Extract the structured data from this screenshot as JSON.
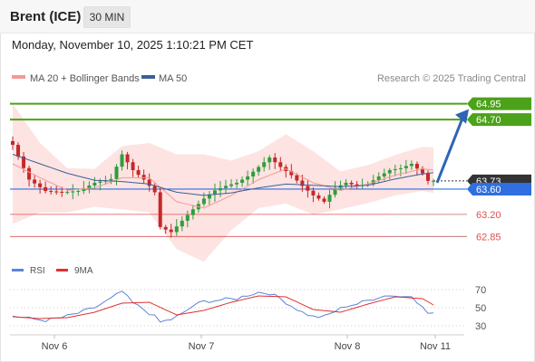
{
  "header": {
    "instrument": "Brent (ICE)",
    "timeframe": "30 MIN"
  },
  "datetime": "Monday, November 10, 2025 1:10:21 PM CET",
  "copyright": "Research © 2025 Trading Central",
  "colors": {
    "ma20_bb": "#f39a96",
    "ma50": "#3a5f9a",
    "resistance": "#4ca21a",
    "support": "#e05050",
    "current": "#2f6fe0",
    "pivot": "#333333",
    "rsi": "#5b84d8",
    "rsi_ma": "#e03030",
    "candle_up": "#2e9e3a",
    "candle_down": "#c62828",
    "arrow": "#2f64b3",
    "band_fill": "#fde0df"
  },
  "chart_data": {
    "type": "candlestick",
    "legend": [
      {
        "name": "MA 20 + Bollinger Bands",
        "color": "#f39a96"
      },
      {
        "name": "MA 50",
        "color": "#3a5f9a"
      }
    ],
    "ylim": [
      62.64,
      65.16
    ],
    "x_labels": [
      "Nov 6",
      "Nov 7",
      "Nov 8",
      "Nov 11"
    ],
    "levels": [
      {
        "value": 64.95,
        "label": "64.95",
        "type": "resistance"
      },
      {
        "value": 64.7,
        "label": "64.70",
        "type": "resistance"
      },
      {
        "value": 63.73,
        "label": "63.73",
        "type": "pivot"
      },
      {
        "value": 63.6,
        "label": "63.60",
        "type": "current"
      },
      {
        "value": 63.2,
        "label": "63.20",
        "type": "support"
      },
      {
        "value": 62.85,
        "label": "62.85",
        "type": "support"
      }
    ],
    "forecast_arrow": {
      "from": 63.7,
      "to": 64.95
    },
    "price_path": [
      [
        0,
        64.3
      ],
      [
        3,
        63.75
      ],
      [
        6,
        63.57
      ],
      [
        9,
        63.55
      ],
      [
        12,
        63.57
      ],
      [
        15,
        63.7
      ],
      [
        18,
        63.76
      ],
      [
        20,
        64.15
      ],
      [
        22,
        63.9
      ],
      [
        24,
        63.75
      ],
      [
        26,
        63.55
      ],
      [
        27,
        63.0
      ],
      [
        29,
        62.92
      ],
      [
        31,
        63.1
      ],
      [
        33,
        63.28
      ],
      [
        35,
        63.45
      ],
      [
        37,
        63.58
      ],
      [
        39,
        63.65
      ],
      [
        41,
        63.7
      ],
      [
        43,
        63.8
      ],
      [
        45,
        63.95
      ],
      [
        47,
        64.1
      ],
      [
        49,
        63.95
      ],
      [
        51,
        63.82
      ],
      [
        53,
        63.65
      ],
      [
        55,
        63.5
      ],
      [
        57,
        63.4
      ],
      [
        59,
        63.62
      ],
      [
        61,
        63.7
      ],
      [
        63,
        63.65
      ],
      [
        65,
        63.68
      ],
      [
        67,
        63.8
      ],
      [
        69,
        63.9
      ],
      [
        71,
        63.93
      ],
      [
        73,
        64.0
      ],
      [
        75,
        63.85
      ],
      [
        76,
        63.73
      ],
      [
        77,
        63.73
      ]
    ],
    "ma20_path": [
      [
        0,
        64.0
      ],
      [
        5,
        63.78
      ],
      [
        10,
        63.58
      ],
      [
        15,
        63.62
      ],
      [
        20,
        63.78
      ],
      [
        25,
        63.78
      ],
      [
        30,
        63.4
      ],
      [
        35,
        63.3
      ],
      [
        40,
        63.5
      ],
      [
        45,
        63.75
      ],
      [
        50,
        63.92
      ],
      [
        55,
        63.7
      ],
      [
        60,
        63.58
      ],
      [
        65,
        63.68
      ],
      [
        70,
        63.82
      ],
      [
        75,
        63.92
      ],
      [
        77,
        63.9
      ]
    ],
    "ma50_path": [
      [
        0,
        64.15
      ],
      [
        5,
        64.0
      ],
      [
        10,
        63.85
      ],
      [
        15,
        63.74
      ],
      [
        20,
        63.72
      ],
      [
        25,
        63.68
      ],
      [
        30,
        63.55
      ],
      [
        35,
        63.5
      ],
      [
        40,
        63.54
      ],
      [
        45,
        63.62
      ],
      [
        50,
        63.68
      ],
      [
        55,
        63.66
      ],
      [
        60,
        63.64
      ],
      [
        65,
        63.66
      ],
      [
        70,
        63.76
      ],
      [
        75,
        63.84
      ],
      [
        77,
        63.86
      ]
    ],
    "bb_width": [
      [
        0,
        0.95
      ],
      [
        5,
        0.55
      ],
      [
        10,
        0.35
      ],
      [
        15,
        0.3
      ],
      [
        20,
        0.5
      ],
      [
        25,
        0.55
      ],
      [
        30,
        0.75
      ],
      [
        35,
        0.85
      ],
      [
        40,
        0.55
      ],
      [
        45,
        0.45
      ],
      [
        50,
        0.55
      ],
      [
        55,
        0.5
      ],
      [
        60,
        0.3
      ],
      [
        65,
        0.3
      ],
      [
        70,
        0.32
      ],
      [
        75,
        0.35
      ],
      [
        77,
        0.36
      ]
    ],
    "rsi": {
      "legend": [
        {
          "name": "RSI",
          "color": "#5b84d8"
        },
        {
          "name": "9MA",
          "color": "#e03030"
        }
      ],
      "ylim": [
        22,
        78
      ],
      "ticks": [
        70,
        50,
        30
      ],
      "rsi_path": [
        [
          0,
          41
        ],
        [
          3,
          38
        ],
        [
          6,
          36
        ],
        [
          9,
          39
        ],
        [
          12,
          44
        ],
        [
          15,
          50
        ],
        [
          18,
          60
        ],
        [
          20,
          68
        ],
        [
          22,
          55
        ],
        [
          24,
          48
        ],
        [
          26,
          40
        ],
        [
          27,
          34
        ],
        [
          29,
          37
        ],
        [
          31,
          43
        ],
        [
          33,
          52
        ],
        [
          35,
          57
        ],
        [
          37,
          58
        ],
        [
          39,
          59
        ],
        [
          41,
          60
        ],
        [
          43,
          64
        ],
        [
          45,
          67
        ],
        [
          47,
          66
        ],
        [
          49,
          60
        ],
        [
          51,
          52
        ],
        [
          53,
          45
        ],
        [
          55,
          40
        ],
        [
          57,
          40
        ],
        [
          59,
          46
        ],
        [
          61,
          52
        ],
        [
          63,
          54
        ],
        [
          65,
          58
        ],
        [
          67,
          62
        ],
        [
          69,
          64
        ],
        [
          71,
          62
        ],
        [
          73,
          64
        ],
        [
          75,
          50
        ],
        [
          76,
          44
        ],
        [
          77,
          44
        ]
      ],
      "ma_path": [
        [
          0,
          40
        ],
        [
          5,
          38
        ],
        [
          10,
          39
        ],
        [
          15,
          45
        ],
        [
          20,
          55
        ],
        [
          25,
          56
        ],
        [
          30,
          42
        ],
        [
          35,
          47
        ],
        [
          40,
          56
        ],
        [
          45,
          63
        ],
        [
          50,
          62
        ],
        [
          55,
          48
        ],
        [
          60,
          45
        ],
        [
          65,
          54
        ],
        [
          70,
          62
        ],
        [
          75,
          60
        ],
        [
          77,
          53
        ]
      ]
    }
  }
}
